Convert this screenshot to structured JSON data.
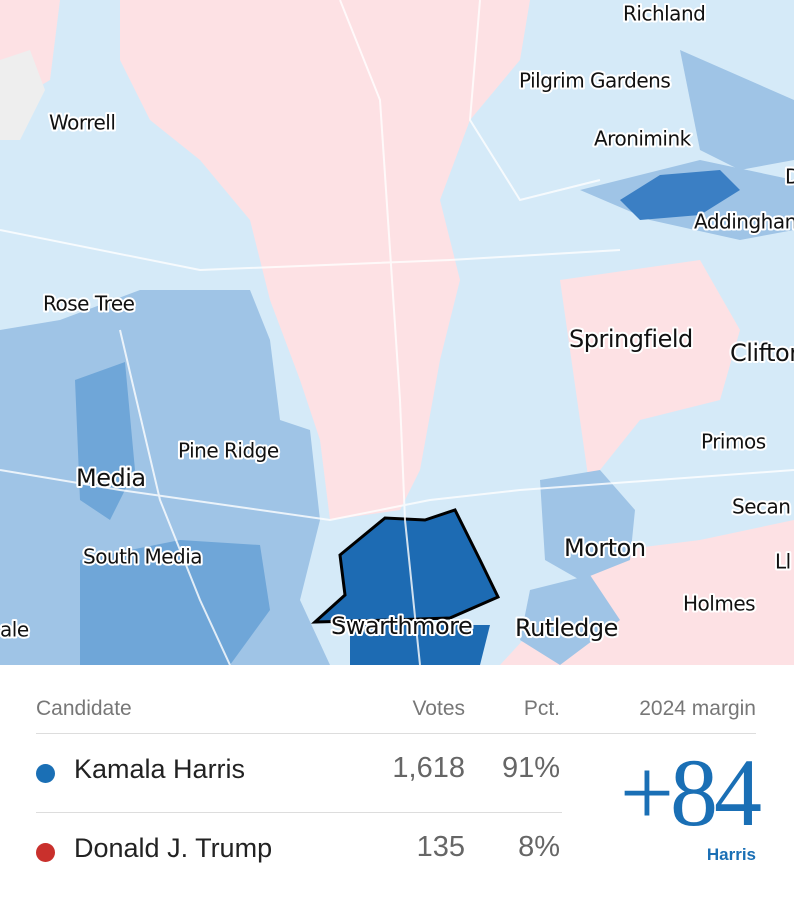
{
  "map": {
    "places": [
      "Richland",
      "Pilgrim Gardens",
      "Worrell",
      "Aronimink",
      "D",
      "Addinghan",
      "Rose Tree",
      "Springfield",
      "Clifton",
      "Pine Ridge",
      "Primos",
      "Media",
      "Secan",
      "Morton",
      "South Media",
      "Ll",
      "Holmes",
      "Swarthmore",
      "Rutledge",
      "ale"
    ]
  },
  "table": {
    "headers": [
      "Candidate",
      "Votes",
      "Pct.",
      "2024 margin"
    ],
    "rows": [
      [
        "Kamala Harris",
        "1,618",
        "91%"
      ],
      [
        "Donald J. Trump",
        "135",
        "8%"
      ]
    ],
    "margin": {
      "value": "+84",
      "winner": "Harris"
    }
  }
}
